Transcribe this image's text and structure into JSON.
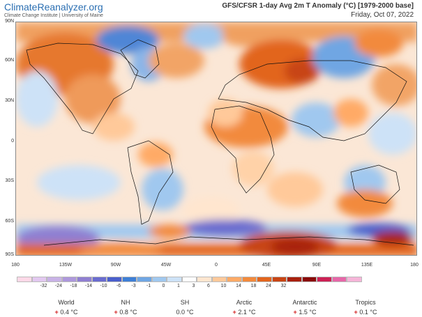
{
  "brand": {
    "name": "ClimateReanalyzer.org",
    "subtitle": "Climate Change Institute | University of Maine"
  },
  "map": {
    "title": "GFS/CFSR 1-day Avg 2m T Anomaly (°C) [1979-2000 base]",
    "date": "Friday, Oct 07, 2022",
    "lat_labels": [
      "90N",
      "60N",
      "30N",
      "0",
      "30S",
      "60S",
      "90S"
    ],
    "lon_labels": [
      "180",
      "135W",
      "90W",
      "45W",
      "0",
      "45E",
      "90E",
      "135E",
      "180"
    ]
  },
  "legend": {
    "colors": [
      "#ffd9e8",
      "#e2c8f0",
      "#c8b2e6",
      "#ad98db",
      "#8f7fd1",
      "#6a6ccf",
      "#4a5fcc",
      "#3e7fd6",
      "#6fa6e3",
      "#a0c8ef",
      "#cde2f7",
      "#ffffff",
      "#ffe6cf",
      "#ffc99a",
      "#ffaa66",
      "#f28a3c",
      "#e2651e",
      "#c84514",
      "#a8200e",
      "#8a0a08",
      "#cc2255",
      "#e667a8",
      "#f5b5d8"
    ],
    "ticks": [
      "-32",
      "-24",
      "-18",
      "-14",
      "-10",
      "-6",
      "-3",
      "-1",
      "0",
      "1",
      "3",
      "6",
      "10",
      "14",
      "18",
      "24",
      "32"
    ]
  },
  "stats": [
    {
      "name": "World",
      "sign": "+",
      "value": "0.4 °C"
    },
    {
      "name": "NH",
      "sign": "+",
      "value": "0.8 °C"
    },
    {
      "name": "SH",
      "sign": "",
      "value": "0.0 °C"
    },
    {
      "name": "Arctic",
      "sign": "+",
      "value": "2.1 °C"
    },
    {
      "name": "Antarctic",
      "sign": "+",
      "value": "1.5 °C"
    },
    {
      "name": "Tropics",
      "sign": "+",
      "value": "0.1 °C"
    }
  ]
}
